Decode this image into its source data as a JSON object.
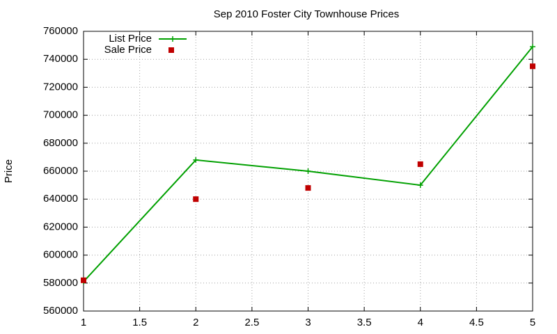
{
  "chart_data": {
    "type": "line",
    "title": "Sep 2010 Foster City Townhouse Prices",
    "y_label": "Price",
    "x": [
      1,
      2,
      3,
      4,
      5
    ],
    "series": [
      {
        "name": "List Price",
        "color": "#00a000",
        "mode": "lines+markers",
        "values": [
          581000,
          668000,
          660000,
          650000,
          749000
        ]
      },
      {
        "name": "Sale Price",
        "color": "#c00000",
        "mode": "markers",
        "values": [
          582000,
          640000,
          648000,
          665000,
          735000
        ]
      }
    ],
    "xlim": [
      1,
      5
    ],
    "xticks": [
      1,
      1.5,
      2,
      2.5,
      3,
      3.5,
      4,
      4.5,
      5
    ],
    "ylim": [
      560000,
      760000
    ],
    "yticks": [
      560000,
      580000,
      600000,
      620000,
      640000,
      660000,
      680000,
      700000,
      720000,
      740000,
      760000
    ],
    "grid": true,
    "legend": "top-left"
  }
}
